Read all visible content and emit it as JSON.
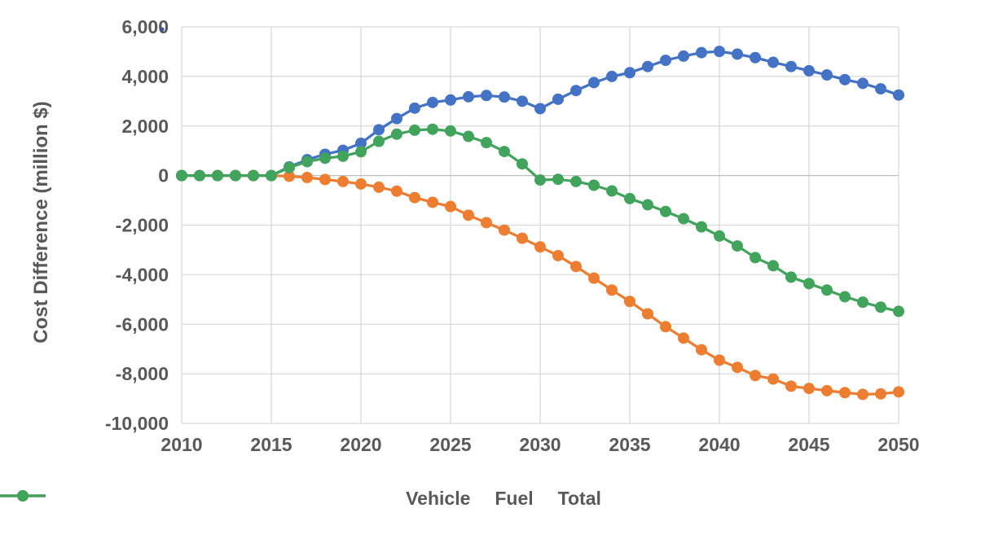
{
  "chart_data": {
    "type": "line",
    "title": "",
    "xlabel": "",
    "ylabel": "Cost Difference (million $)",
    "xlim": [
      2010,
      2050
    ],
    "ylim": [
      -10000,
      6000
    ],
    "grid": true,
    "legend_position": "bottom",
    "x_ticks": [
      {
        "v": 2010,
        "label": "2010"
      },
      {
        "v": 2015,
        "label": "2015"
      },
      {
        "v": 2020,
        "label": "2020"
      },
      {
        "v": 2025,
        "label": "2025"
      },
      {
        "v": 2030,
        "label": "2030"
      },
      {
        "v": 2035,
        "label": "2035"
      },
      {
        "v": 2040,
        "label": "2040"
      },
      {
        "v": 2045,
        "label": "2045"
      },
      {
        "v": 2050,
        "label": "2050"
      }
    ],
    "y_ticks": [
      {
        "v": 6000,
        "label": "6,000"
      },
      {
        "v": 4000,
        "label": "4,000"
      },
      {
        "v": 2000,
        "label": "2,000"
      },
      {
        "v": 0,
        "label": "0"
      },
      {
        "v": -2000,
        "label": "-2,000"
      },
      {
        "v": -4000,
        "label": "-4,000"
      },
      {
        "v": -6000,
        "label": "-6,000"
      },
      {
        "v": -8000,
        "label": "-8,000"
      },
      {
        "v": -10000,
        "label": "-10,000"
      }
    ],
    "x": [
      2010,
      2011,
      2012,
      2013,
      2014,
      2015,
      2016,
      2017,
      2018,
      2019,
      2020,
      2021,
      2022,
      2023,
      2024,
      2025,
      2026,
      2027,
      2028,
      2029,
      2030,
      2031,
      2032,
      2033,
      2034,
      2035,
      2036,
      2037,
      2038,
      2039,
      2040,
      2041,
      2042,
      2043,
      2044,
      2045,
      2046,
      2047,
      2048,
      2049,
      2050
    ],
    "series": [
      {
        "name": "Vehicle",
        "color": "#4472C4",
        "values": [
          0,
          0,
          0,
          0,
          0,
          0,
          350,
          640,
          860,
          1020,
          1300,
          1850,
          2300,
          2720,
          2950,
          3050,
          3180,
          3230,
          3170,
          3000,
          2700,
          3080,
          3430,
          3750,
          4000,
          4150,
          4400,
          4650,
          4820,
          4960,
          5010,
          4900,
          4760,
          4570,
          4400,
          4230,
          4060,
          3870,
          3720,
          3500,
          3250
        ]
      },
      {
        "name": "Fuel",
        "color": "#ED7D31",
        "values": [
          0,
          0,
          0,
          0,
          0,
          0,
          -30,
          -80,
          -160,
          -240,
          -340,
          -470,
          -630,
          -890,
          -1080,
          -1250,
          -1600,
          -1900,
          -2200,
          -2530,
          -2880,
          -3230,
          -3670,
          -4140,
          -4620,
          -5080,
          -5580,
          -6100,
          -6560,
          -7030,
          -7450,
          -7740,
          -8070,
          -8210,
          -8500,
          -8590,
          -8680,
          -8760,
          -8830,
          -8810,
          -8730
        ]
      },
      {
        "name": "Total",
        "color": "#42A45C",
        "values": [
          0,
          0,
          0,
          0,
          0,
          0,
          320,
          560,
          700,
          780,
          960,
          1380,
          1670,
          1830,
          1870,
          1800,
          1580,
          1330,
          970,
          470,
          -180,
          -150,
          -240,
          -390,
          -620,
          -930,
          -1180,
          -1450,
          -1740,
          -2070,
          -2440,
          -2840,
          -3310,
          -3640,
          -4100,
          -4360,
          -4620,
          -4890,
          -5110,
          -5310,
          -5480
        ]
      }
    ]
  },
  "colors": {
    "grid": "#D9D9D9",
    "zero_line": "#BFBFBF",
    "axis_text": "#595959",
    "stray_dot": "#3A53A4"
  }
}
